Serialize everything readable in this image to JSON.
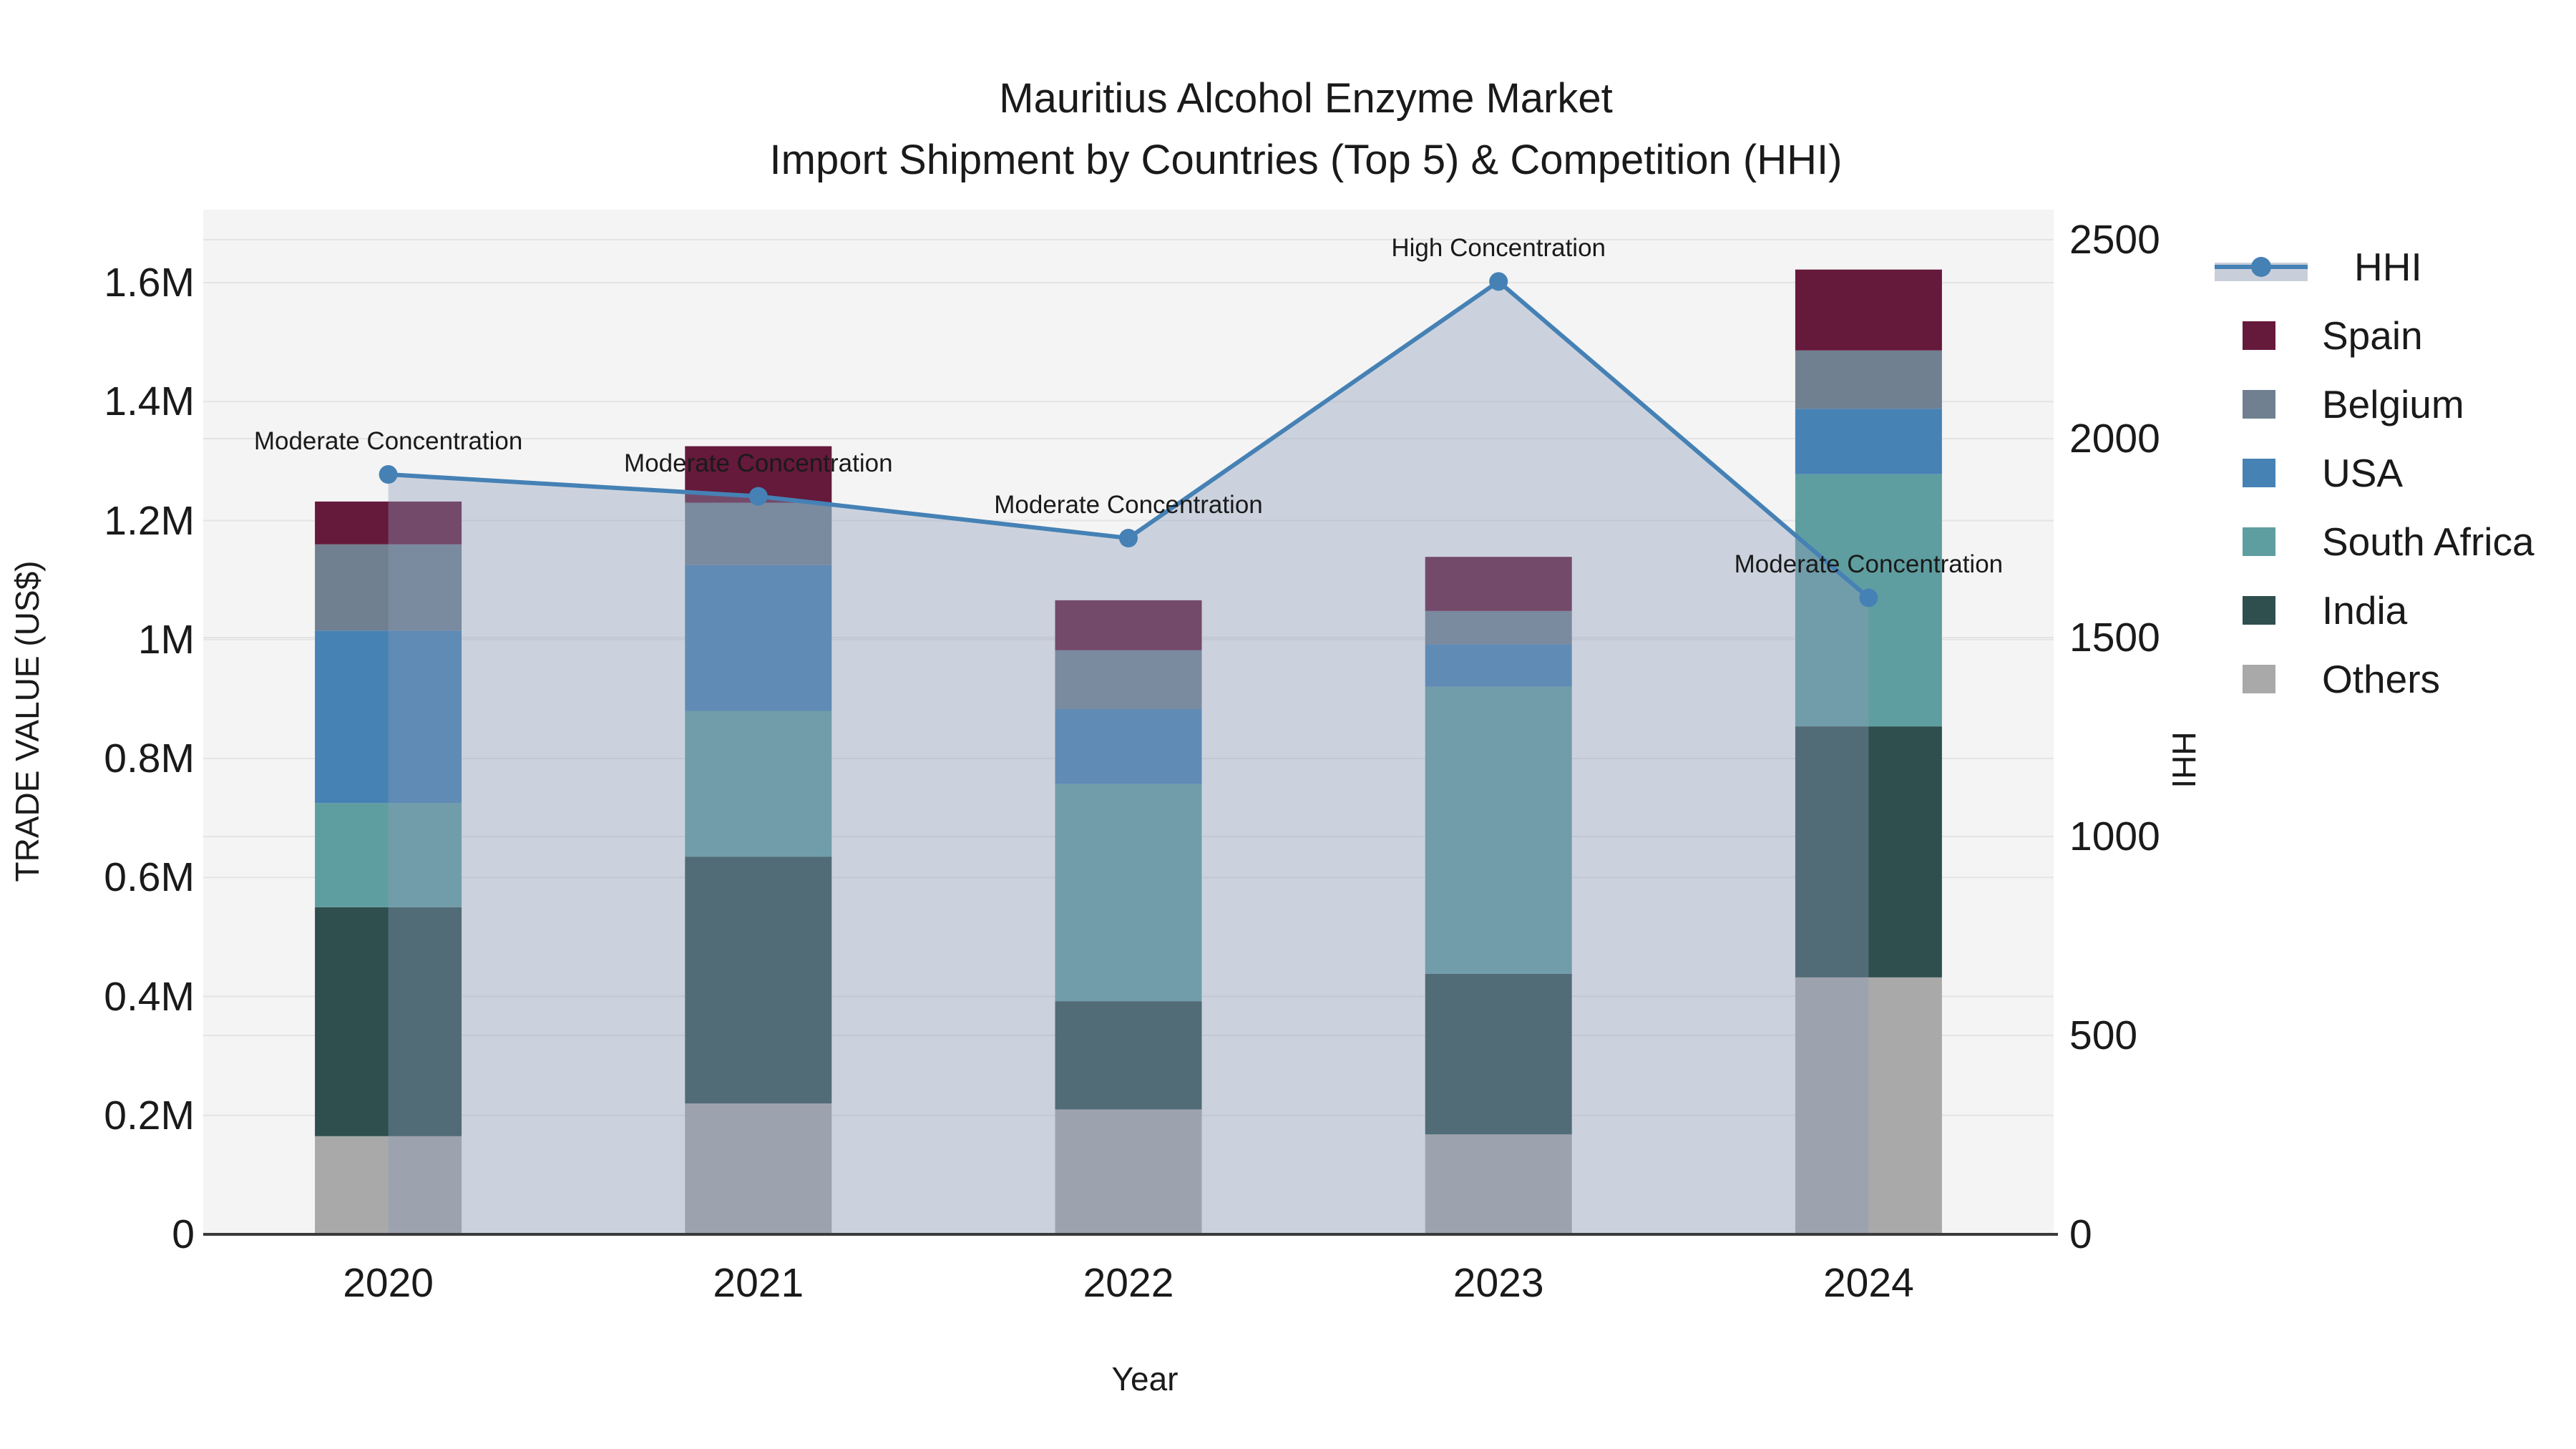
{
  "title": {
    "line1": "Mauritius Alcohol Enzyme Market",
    "line2": "Import Shipment by Countries (Top 5) & Competition (HHI)"
  },
  "y_axis": {
    "title": "TRADE VALUE (US$)",
    "tick_labels": [
      "0",
      "0.2M",
      "0.4M",
      "0.6M",
      "0.8M",
      "1M",
      "1.2M",
      "1.4M",
      "1.6M"
    ],
    "tick_values_M": [
      0,
      0.2,
      0.4,
      0.6,
      0.8,
      1.0,
      1.2,
      1.4,
      1.6
    ]
  },
  "y2_axis": {
    "title": "HHI",
    "tick_labels": [
      "0",
      "500",
      "1000",
      "1500",
      "2000",
      "2500"
    ],
    "tick_values": [
      0,
      500,
      1000,
      1500,
      2000,
      2500
    ]
  },
  "x_axis": {
    "title": "Year",
    "tick_labels": [
      "2020",
      "2021",
      "2022",
      "2023",
      "2024"
    ]
  },
  "legend": {
    "items": [
      {
        "label": "HHI",
        "type": "line",
        "color": "#4581B5",
        "fill": "#C9CFDA"
      },
      {
        "label": "Spain",
        "type": "swatch",
        "color": "#65193B"
      },
      {
        "label": "Belgium",
        "type": "swatch",
        "color": "#708090"
      },
      {
        "label": "USA",
        "type": "swatch",
        "color": "#4682B4"
      },
      {
        "label": "South Africa",
        "type": "swatch",
        "color": "#5F9EA0"
      },
      {
        "label": "India",
        "type": "swatch",
        "color": "#2F4F4F"
      },
      {
        "label": "Others",
        "type": "swatch",
        "color": "#A9A9A9"
      }
    ]
  },
  "annotations": [
    {
      "x": "2020",
      "text": "Moderate Concentration"
    },
    {
      "x": "2021",
      "text": "Moderate Concentration"
    },
    {
      "x": "2022",
      "text": "Moderate Concentration"
    },
    {
      "x": "2023",
      "text": "High Concentration"
    },
    {
      "x": "2024",
      "text": "Moderate Concentration"
    }
  ],
  "colors": {
    "plot_background": "#F4F4F4",
    "gridline": "#E4E4E4",
    "axis_line": "#3A3A3A",
    "text": "#1A1A1A",
    "hhi_line": "#4581B5",
    "hhi_area_fill": "rgba(140,155,185,0.38)"
  },
  "chart_data": {
    "type": "bar+line",
    "categories": [
      "2020",
      "2021",
      "2022",
      "2023",
      "2024"
    ],
    "bar_value_unit": "M US$ (trade value, left axis)",
    "series": [
      {
        "name": "Others",
        "color": "#A9A9A9",
        "values": [
          0.165,
          0.22,
          0.21,
          0.168,
          0.432
        ]
      },
      {
        "name": "India",
        "color": "#2F4F4F",
        "values": [
          0.385,
          0.415,
          0.182,
          0.27,
          0.422
        ]
      },
      {
        "name": "South Africa",
        "color": "#5F9EA0",
        "values": [
          0.175,
          0.245,
          0.365,
          0.483,
          0.424
        ]
      },
      {
        "name": "USA",
        "color": "#4682B4",
        "values": [
          0.29,
          0.245,
          0.126,
          0.071,
          0.11
        ]
      },
      {
        "name": "Belgium",
        "color": "#708090",
        "values": [
          0.145,
          0.105,
          0.099,
          0.056,
          0.098
        ]
      },
      {
        "name": "Spain",
        "color": "#65193B",
        "values": [
          0.072,
          0.095,
          0.084,
          0.091,
          0.136
        ]
      }
    ],
    "bar_totals_M": [
      1.232,
      1.325,
      1.066,
      1.139,
      1.622
    ],
    "line_series": {
      "name": "HHI",
      "axis": "right",
      "values": [
        1910,
        1855,
        1750,
        2395,
        1600
      ],
      "area_fill": true
    },
    "ylim_left_M": [
      0,
      1.72
    ],
    "ylim_right": [
      0,
      2575
    ],
    "grid": true,
    "legend_position": "right",
    "stack_order": "bottom-to-top as listed in series"
  }
}
